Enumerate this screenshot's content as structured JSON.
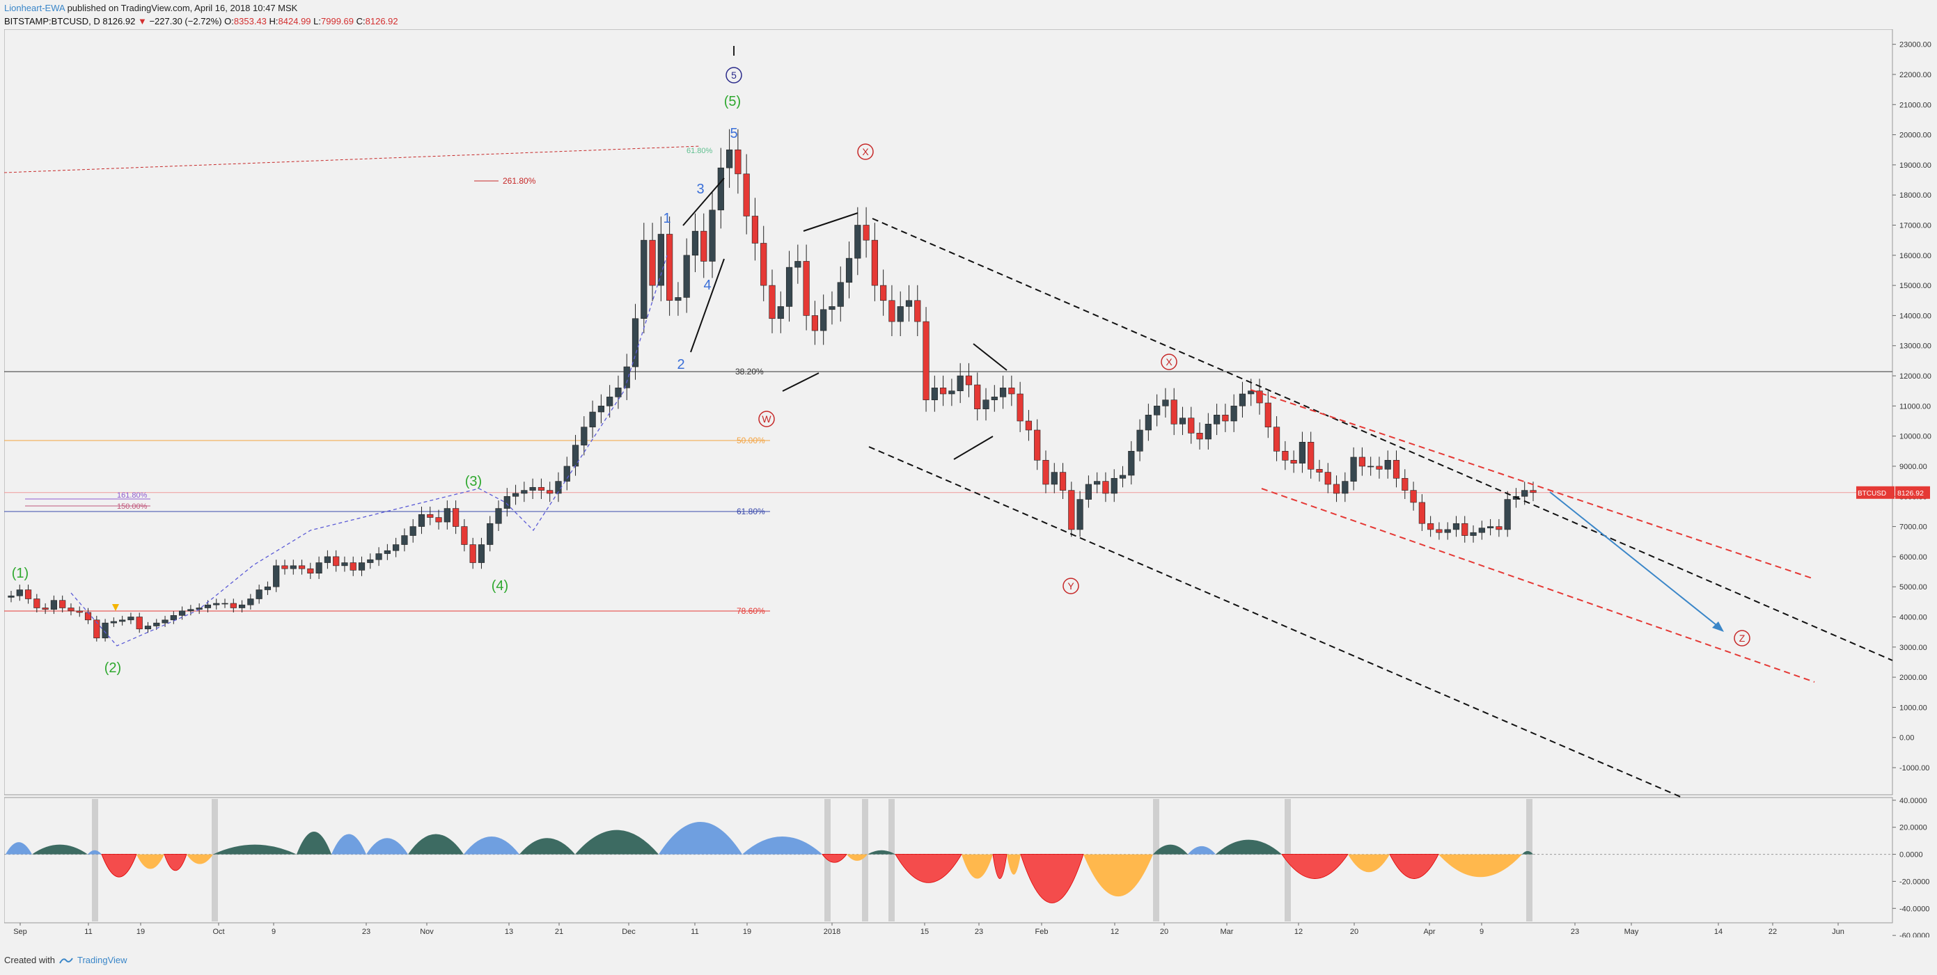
{
  "header": {
    "author": "Lionheart-EWA",
    "published_text": "published on TradingView.com, April 16, 2018 10:47 MSK",
    "symbol": "BITSTAMP:BTCUSD, D",
    "last": "8126.92",
    "change_arrow": "▼",
    "change": "−227.30 (−2.72%)",
    "open_label": "O:",
    "open": "8353.43",
    "high_label": "H:",
    "high": "8424.99",
    "low_label": "L:",
    "low": "7999.69",
    "close_label": "C:",
    "close": "8126.92"
  },
  "footer": {
    "created_with": "Created with",
    "brand": "TradingView"
  },
  "colors": {
    "up": "#37474f",
    "down": "#e53935",
    "bg": "#f1f1f1",
    "osc_dark": "#3d6b62",
    "osc_blue": "#6f9fe0",
    "osc_red": "#f44c4c",
    "osc_orange": "#ffb84d"
  },
  "chart_data": {
    "type": "candlestick",
    "title": "",
    "x_axis": {
      "ticks": [
        "Sep",
        "11",
        "19",
        "Oct",
        "9",
        "23",
        "Nov",
        "13",
        "21",
        "Dec",
        "11",
        "19",
        "2018",
        "15",
        "23",
        "Feb",
        "12",
        "20",
        "Mar",
        "12",
        "20",
        "Apr",
        "9",
        "23",
        "May",
        "14",
        "22",
        "Jun"
      ]
    },
    "y_axis": {
      "ticks": [
        "23000.00",
        "22000.00",
        "21000.00",
        "20000.00",
        "19000.00",
        "18000.00",
        "17000.00",
        "16000.00",
        "15000.00",
        "14000.00",
        "13000.00",
        "12000.00",
        "11000.00",
        "10000.00",
        "9000.00",
        "8000.00",
        "7000.00",
        "6000.00",
        "5000.00",
        "4000.00",
        "3000.00",
        "2000.00",
        "1000.00",
        "0.00",
        "-1000.00"
      ],
      "range": [
        -1900,
        23500
      ]
    },
    "price_label": {
      "symbol": "BTCUSD",
      "value": "8126.92"
    },
    "close_series": [
      4700,
      4900,
      4600,
      4300,
      4250,
      4550,
      4300,
      4200,
      4150,
      3900,
      3300,
      3800,
      3850,
      3900,
      4000,
      3600,
      3700,
      3800,
      3900,
      4050,
      4200,
      4250,
      4300,
      4400,
      4450,
      4450,
      4300,
      4400,
      4600,
      4900,
      5000,
      5700,
      5600,
      5700,
      5600,
      5450,
      5800,
      6000,
      5700,
      5800,
      5550,
      5800,
      5900,
      6100,
      6200,
      6400,
      6700,
      7000,
      7400,
      7300,
      7150,
      7600,
      7000,
      6400,
      5800,
      6400,
      7100,
      7600,
      8000,
      8100,
      8200,
      8300,
      8200,
      8100,
      8500,
      9000,
      9700,
      10300,
      10800,
      11000,
      11300,
      11600,
      12300,
      13900,
      16500,
      15000,
      16700,
      14500,
      14600,
      16000,
      16800,
      15800,
      17500,
      18900,
      19500,
      18700,
      17300,
      16400,
      15000,
      13900,
      14300,
      15600,
      15800,
      14000,
      13500,
      14200,
      14300,
      15100,
      15900,
      17000,
      16500,
      15000,
      14500,
      13800,
      14300,
      14500,
      13800,
      11200,
      11600,
      11400,
      11500,
      12000,
      11700,
      10900,
      11200,
      11300,
      11600,
      11400,
      10500,
      10200,
      9200,
      8400,
      8800,
      8200,
      6900,
      7900,
      8400,
      8500,
      8100,
      8600,
      8700,
      9500,
      10200,
      10700,
      11000,
      11200,
      10400,
      10600,
      10100,
      9900,
      10400,
      10700,
      10500,
      11000,
      11400,
      11500,
      11100,
      10300,
      9500,
      9200,
      9100,
      9800,
      8900,
      8800,
      8400,
      8100,
      8500,
      9300,
      9000,
      9000,
      8900,
      9200,
      8600,
      8200,
      7800,
      7100,
      6900,
      6800,
      6900,
      7100,
      6700,
      6800,
      6950,
      7000,
      6900,
      7900,
      8000,
      8200,
      8126.92
    ],
    "annotations": {
      "labels": [
        "1",
        "2",
        "3",
        "4",
        "5",
        "(1)",
        "(2)",
        "(3)",
        "(4)",
        "(5)",
        "5",
        "I",
        "W",
        "X",
        "Y",
        "X",
        "Z"
      ],
      "fib": [
        "261.80%",
        "161.80%",
        "150.00%",
        "38.20%",
        "50.00%",
        "61.80%",
        "78.60%",
        "61.80%"
      ]
    },
    "oscillator": {
      "y_ticks": [
        "40.0000",
        "20.0000",
        "0.0000",
        "-20.0000",
        "-40.0000",
        "-60.0000"
      ],
      "range": [
        -62,
        42
      ]
    }
  }
}
